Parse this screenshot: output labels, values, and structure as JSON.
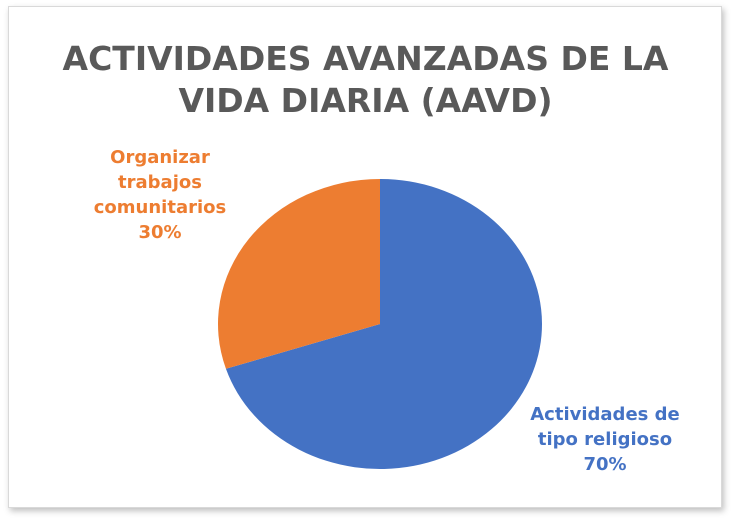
{
  "chart_data": {
    "type": "pie",
    "title": "ACTIVIDADES AVANZADAS DE LA VIDA DIARIA (AAVD)",
    "categories": [
      "Actividades de tipo religioso",
      "Organizar trabajos comunitarios"
    ],
    "values": [
      70,
      30
    ],
    "value_labels": [
      "70%",
      "30%"
    ],
    "colors": [
      "#4472c4",
      "#ed7d31"
    ]
  }
}
